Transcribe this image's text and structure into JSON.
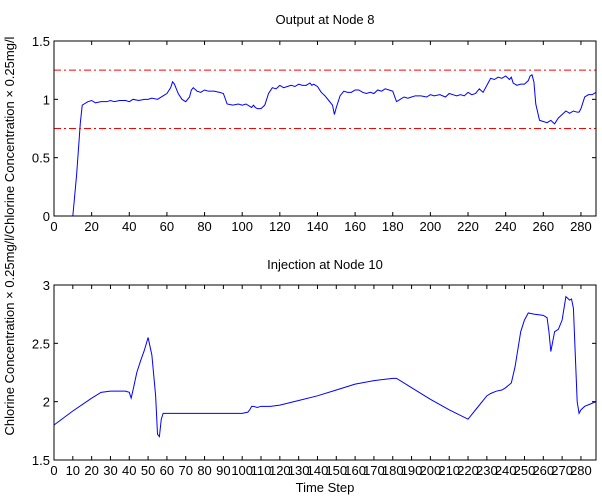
{
  "chart_data": [
    {
      "type": "line",
      "title": "Output at Node 8",
      "xlabel": "",
      "ylabel": "Chlorine Concentration × 0.25mg/l",
      "xlim": [
        0,
        288
      ],
      "ylim": [
        0,
        1.5
      ],
      "xticks": [
        "0",
        "20",
        "40",
        "60",
        "80",
        "100",
        "120",
        "140",
        "160",
        "180",
        "200",
        "220",
        "240",
        "260",
        "280"
      ],
      "yticks": [
        "0",
        "0.5",
        "1",
        "1.5"
      ],
      "grid": false,
      "legend": "none",
      "series": [
        {
          "color": "#0000ff",
          "style": "solid",
          "x": [
            0,
            10,
            12,
            14,
            15,
            16,
            18,
            20,
            22,
            25,
            28,
            30,
            32,
            35,
            38,
            40,
            42,
            45,
            48,
            50,
            52,
            55,
            58,
            60,
            62,
            63,
            64,
            66,
            68,
            70,
            72,
            73,
            74,
            76,
            78,
            80,
            82,
            85,
            88,
            90,
            92,
            95,
            98,
            100,
            102,
            104,
            105,
            106,
            107,
            108,
            110,
            112,
            114,
            116,
            118,
            120,
            122,
            124,
            126,
            128,
            130,
            132,
            134,
            136,
            137,
            138,
            140,
            142,
            144,
            146,
            148,
            149,
            150,
            152,
            154,
            156,
            158,
            160,
            162,
            164,
            166,
            168,
            170,
            172,
            174,
            176,
            178,
            180,
            182,
            184,
            186,
            188,
            190,
            192,
            195,
            198,
            200,
            202,
            205,
            208,
            210,
            212,
            214,
            216,
            218,
            220,
            222,
            224,
            226,
            228,
            230,
            232,
            234,
            236,
            238,
            240,
            242,
            243,
            244,
            246,
            248,
            250,
            252,
            253,
            254,
            255,
            256,
            258,
            260,
            262,
            264,
            266,
            268,
            270,
            272,
            274,
            276,
            278,
            279,
            280,
            282,
            284,
            286,
            288
          ],
          "y": [
            0,
            0,
            0.35,
            0.8,
            0.95,
            0.96,
            0.98,
            0.99,
            0.97,
            0.98,
            0.98,
            0.99,
            0.98,
            0.99,
            0.99,
            0.98,
            1.0,
            0.99,
            1.0,
            1.0,
            1.01,
            1.0,
            1.03,
            1.05,
            1.1,
            1.15,
            1.13,
            1.05,
            1.0,
            0.98,
            1.02,
            1.08,
            1.1,
            1.07,
            1.06,
            1.08,
            1.07,
            1.07,
            1.06,
            1.05,
            0.96,
            0.95,
            0.96,
            0.95,
            0.96,
            0.94,
            0.93,
            0.95,
            0.93,
            0.92,
            0.92,
            0.95,
            1.05,
            1.1,
            1.09,
            1.12,
            1.1,
            1.11,
            1.12,
            1.11,
            1.13,
            1.12,
            1.12,
            1.14,
            1.12,
            1.13,
            1.11,
            1.06,
            1.03,
            0.99,
            0.95,
            0.87,
            0.93,
            1.03,
            1.07,
            1.06,
            1.06,
            1.08,
            1.08,
            1.06,
            1.05,
            1.06,
            1.05,
            1.08,
            1.07,
            1.09,
            1.08,
            1.07,
            0.98,
            1.0,
            1.02,
            1.01,
            1.02,
            1.03,
            1.03,
            1.02,
            1.04,
            1.03,
            1.04,
            1.02,
            1.05,
            1.04,
            1.03,
            1.04,
            1.03,
            1.06,
            1.04,
            1.05,
            1.09,
            1.06,
            1.12,
            1.18,
            1.17,
            1.19,
            1.18,
            1.2,
            1.17,
            1.19,
            1.14,
            1.12,
            1.13,
            1.13,
            1.16,
            1.2,
            1.21,
            1.15,
            0.96,
            0.82,
            0.81,
            0.8,
            0.82,
            0.79,
            0.84,
            0.87,
            0.9,
            0.88,
            0.9,
            0.89,
            0.89,
            0.92,
            1.02,
            1.04,
            1.04,
            1.06
          ]
        },
        {
          "color": "#ff0000",
          "style": "dash-dot",
          "x": [
            0,
            288
          ],
          "y": [
            1.25,
            1.25
          ]
        },
        {
          "color": "#ff0000",
          "style": "dash-dot",
          "x": [
            0,
            288
          ],
          "y": [
            0.75,
            0.75
          ]
        }
      ]
    },
    {
      "type": "line",
      "title": "Injection at Node 10",
      "xlabel": "Time Step",
      "ylabel": "Chlorine Concentration × 0.25mg/l",
      "xlim": [
        0,
        288
      ],
      "ylim": [
        1.5,
        3
      ],
      "xticks": [
        "0",
        "10",
        "20",
        "30",
        "40",
        "50",
        "60",
        "70",
        "80",
        "90",
        "100",
        "110",
        "120",
        "130",
        "140",
        "150",
        "160",
        "170",
        "180",
        "190",
        "200",
        "210",
        "220",
        "230",
        "240",
        "250",
        "260",
        "270",
        "280"
      ],
      "yticks": [
        "1.5",
        "2",
        "2.5",
        "3"
      ],
      "grid": false,
      "legend": "none",
      "series": [
        {
          "color": "#0000ff",
          "style": "solid",
          "x": [
            0,
            10,
            20,
            25,
            30,
            35,
            38,
            40,
            41,
            42,
            44,
            46,
            48,
            50,
            52,
            54,
            55,
            56,
            57,
            58,
            60,
            70,
            80,
            90,
            100,
            103,
            104,
            105,
            106,
            108,
            110,
            115,
            120,
            130,
            140,
            150,
            160,
            170,
            180,
            182,
            190,
            200,
            210,
            220,
            225,
            230,
            232,
            235,
            238,
            240,
            243,
            245,
            248,
            250,
            252,
            255,
            260,
            262,
            263,
            264,
            266,
            268,
            270,
            272,
            274,
            275,
            276,
            278,
            279,
            280,
            282,
            285,
            288
          ],
          "y": [
            1.8,
            1.92,
            2.03,
            2.08,
            2.09,
            2.09,
            2.09,
            2.08,
            2.03,
            2.1,
            2.25,
            2.35,
            2.44,
            2.55,
            2.4,
            2.05,
            1.72,
            1.7,
            1.85,
            1.9,
            1.9,
            1.9,
            1.9,
            1.9,
            1.9,
            1.91,
            1.93,
            1.96,
            1.96,
            1.95,
            1.96,
            1.96,
            1.97,
            2.01,
            2.05,
            2.1,
            2.15,
            2.18,
            2.2,
            2.2,
            2.12,
            2.02,
            1.93,
            1.85,
            1.95,
            2.05,
            2.07,
            2.09,
            2.1,
            2.12,
            2.16,
            2.3,
            2.6,
            2.7,
            2.76,
            2.75,
            2.74,
            2.72,
            2.6,
            2.43,
            2.6,
            2.62,
            2.7,
            2.9,
            2.87,
            2.88,
            2.8,
            2.0,
            1.9,
            1.93,
            1.96,
            1.98,
            2.0
          ]
        }
      ]
    }
  ],
  "shared_ylabel": "Chlorine Concentration × 0.25mg/l/Chlorine Concentration × 0.25mg/l"
}
